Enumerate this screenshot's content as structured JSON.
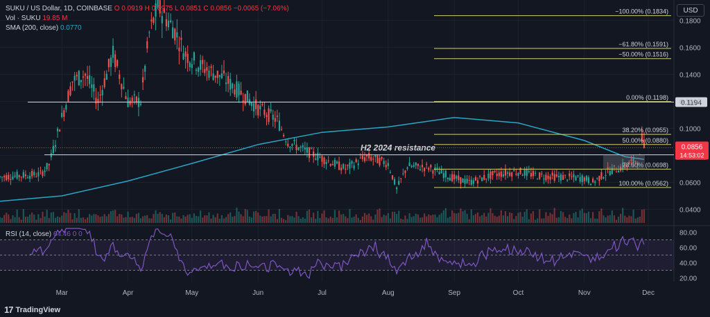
{
  "header": {
    "symbol_line": "SUKU / US Dollar, 1D, COINBASE",
    "ohlc": "O 0.0919  H 0.0975  L 0.0851  C 0.0856  −0.0065 (−7.06%)",
    "volume_label": "Vol · SUKU",
    "volume_value": "19.85 M",
    "sma_label": "SMA (200, close)",
    "sma_value": "0.0770",
    "currency_button": "USD"
  },
  "rsi": {
    "label": "RSI (14, close)",
    "values_text": "64.46  0  0"
  },
  "branding": {
    "logo_text": "TradingView"
  },
  "colors": {
    "background": "#131722",
    "up": "#26a69a",
    "down": "#ef5350",
    "sma": "#2aa7c7",
    "fib": "#d6cf6c",
    "rsi_line": "#7e57c2",
    "price_label": "#f23645"
  },
  "chart_data": {
    "type": "candlestick",
    "title": "SUKU / US Dollar, 1D, COINBASE",
    "y_axis": {
      "ticks": [
        0.18,
        0.16,
        0.14,
        0.12,
        0.1,
        0.08,
        0.06,
        0.04
      ],
      "tick_labels": [
        "0.1800",
        "0.1600",
        "0.1400",
        "0.1200",
        "0.1000",
        "0.0800",
        "0.0600",
        "0.0400"
      ],
      "range": [
        0.03,
        0.195
      ]
    },
    "x_axis": {
      "tick_labels": [
        "Mar",
        "Apr",
        "May",
        "Jun",
        "Jul",
        "Aug",
        "Sep",
        "Oct",
        "Nov",
        "Dec"
      ],
      "tick_dates": [
        "2024-03-01",
        "2024-04-01",
        "2024-05-01",
        "2024-06-01",
        "2024-07-01",
        "2024-08-01",
        "2024-09-01",
        "2024-10-01",
        "2024-11-01",
        "2024-12-01"
      ],
      "range": [
        "2024-02-01",
        "2024-12-13"
      ]
    },
    "anchors": [
      {
        "date": "2024-02-01",
        "close": 0.064
      },
      {
        "date": "2024-02-20",
        "close": 0.066
      },
      {
        "date": "2024-02-24",
        "close": 0.073
      },
      {
        "date": "2024-03-01",
        "close": 0.108
      },
      {
        "date": "2024-03-06",
        "close": 0.135
      },
      {
        "date": "2024-03-12",
        "close": 0.14
      },
      {
        "date": "2024-03-18",
        "close": 0.12
      },
      {
        "date": "2024-03-25",
        "close": 0.155
      },
      {
        "date": "2024-04-01",
        "close": 0.12
      },
      {
        "date": "2024-04-07",
        "close": 0.12
      },
      {
        "date": "2024-04-11",
        "close": 0.17
      },
      {
        "date": "2024-04-15",
        "close": 0.19
      },
      {
        "date": "2024-04-22",
        "close": 0.175
      },
      {
        "date": "2024-04-28",
        "close": 0.155
      },
      {
        "date": "2024-05-05",
        "close": 0.146
      },
      {
        "date": "2024-05-15",
        "close": 0.138
      },
      {
        "date": "2024-05-25",
        "close": 0.125
      },
      {
        "date": "2024-06-01",
        "close": 0.115
      },
      {
        "date": "2024-06-10",
        "close": 0.106
      },
      {
        "date": "2024-06-15",
        "close": 0.09
      },
      {
        "date": "2024-06-25",
        "close": 0.082
      },
      {
        "date": "2024-07-05",
        "close": 0.075
      },
      {
        "date": "2024-07-12",
        "close": 0.07
      },
      {
        "date": "2024-07-22",
        "close": 0.079
      },
      {
        "date": "2024-08-01",
        "close": 0.074
      },
      {
        "date": "2024-08-05",
        "close": 0.055
      },
      {
        "date": "2024-08-10",
        "close": 0.072
      },
      {
        "date": "2024-08-20",
        "close": 0.071
      },
      {
        "date": "2024-09-01",
        "close": 0.063
      },
      {
        "date": "2024-09-08",
        "close": 0.06
      },
      {
        "date": "2024-09-20",
        "close": 0.066
      },
      {
        "date": "2024-10-01",
        "close": 0.068
      },
      {
        "date": "2024-10-10",
        "close": 0.065
      },
      {
        "date": "2024-10-20",
        "close": 0.064
      },
      {
        "date": "2024-11-01",
        "close": 0.063
      },
      {
        "date": "2024-11-05",
        "close": 0.06
      },
      {
        "date": "2024-11-12",
        "close": 0.068
      },
      {
        "date": "2024-11-20",
        "close": 0.072
      },
      {
        "date": "2024-11-27",
        "close": 0.078
      },
      {
        "date": "2024-11-28",
        "close": 0.092
      },
      {
        "date": "2024-11-29",
        "close": 0.0856
      }
    ],
    "sma_200": [
      {
        "date": "2024-02-01",
        "value": 0.046
      },
      {
        "date": "2024-03-01",
        "value": 0.05
      },
      {
        "date": "2024-04-01",
        "value": 0.061
      },
      {
        "date": "2024-05-01",
        "value": 0.074
      },
      {
        "date": "2024-06-01",
        "value": 0.088
      },
      {
        "date": "2024-07-01",
        "value": 0.097
      },
      {
        "date": "2024-08-01",
        "value": 0.101
      },
      {
        "date": "2024-09-01",
        "value": 0.108
      },
      {
        "date": "2024-10-01",
        "value": 0.104
      },
      {
        "date": "2024-11-01",
        "value": 0.091
      },
      {
        "date": "2024-11-20",
        "value": 0.079
      },
      {
        "date": "2024-11-29",
        "value": 0.077
      }
    ],
    "horizontal_lines": [
      {
        "value": 0.1194,
        "label": "0.1194",
        "color": "#d1d4dc"
      },
      {
        "value": 0.0804,
        "label": "0.0804",
        "color": "#d1d4dc"
      }
    ],
    "annotation": {
      "text": "H2 2024 resistance",
      "value": 0.0804
    },
    "fib_levels": [
      {
        "ratio_label": "−100.00%",
        "value": 0.1834,
        "text": "−100.00% (0.1834)"
      },
      {
        "ratio_label": "−61.80%",
        "value": 0.1591,
        "text": "−61.80% (0.1591)"
      },
      {
        "ratio_label": "−50.00%",
        "value": 0.1516,
        "text": "−50.00% (0.1516)"
      },
      {
        "ratio_label": "0.00%",
        "value": 0.1198,
        "text": "0.00% (0.1198)"
      },
      {
        "ratio_label": "38.20%",
        "value": 0.0955,
        "text": "38.20% (0.0955)"
      },
      {
        "ratio_label": "50.00%",
        "value": 0.088,
        "text": "50.00% (0.0880)"
      },
      {
        "ratio_label": "78.60%",
        "value": 0.0698,
        "text": "78.60% (0.0698)"
      },
      {
        "ratio_label": "100.00%",
        "value": 0.0562,
        "text": "100.00% (0.0562)"
      }
    ],
    "last_price": {
      "value": 0.0856,
      "label": "0.0856",
      "countdown": "14:53:02"
    },
    "rsi_series": {
      "ticks": [
        80,
        60,
        40,
        20
      ],
      "tick_labels": [
        "80.00",
        "60.00",
        "40.00",
        "20.00"
      ],
      "overbought": 70,
      "oversold": 30,
      "range": [
        15,
        85
      ]
    }
  }
}
